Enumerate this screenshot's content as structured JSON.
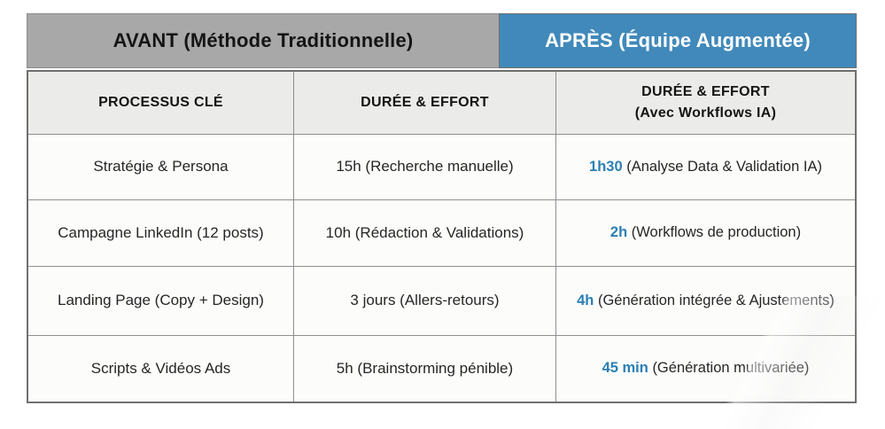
{
  "colors": {
    "band_gray": "#a8a8a8",
    "band_blue": "#4189ba",
    "accent_blue": "#2b7fb4",
    "header_row_bg": "#ebebe9",
    "cell_bg": "#fcfcfb",
    "border": "#8f8f8f"
  },
  "header": {
    "avant_label": "AVANT (Méthode Traditionnelle)",
    "apres_label": "APRÈS (Équipe Augmentée)"
  },
  "columns": {
    "process": "PROCESSUS CLÉ",
    "duration_before": "DURÉE & EFFORT",
    "duration_after_line1": "DURÉE & EFFORT",
    "duration_after_line2": "(Avec Workflows IA)"
  },
  "rows": [
    {
      "process": "Stratégie & Persona",
      "before": "15h (Recherche manuelle)",
      "after_value": "1h30",
      "after_desc": "(Analyse Data & Validation IA)"
    },
    {
      "process": "Campagne LinkedIn (12 posts)",
      "before": "10h (Rédaction & Validations)",
      "after_value": "2h",
      "after_desc": "(Workflows de production)"
    },
    {
      "process": "Landing Page (Copy + Design)",
      "before": "3 jours (Allers-retours)",
      "after_value": "4h",
      "after_desc": "(Génération intégrée & Ajustements)"
    },
    {
      "process": "Scripts & Vidéos Ads",
      "before": "5h (Brainstorming pénible)",
      "after_value": "45 min",
      "after_desc": "(Génération multivariée)"
    }
  ]
}
